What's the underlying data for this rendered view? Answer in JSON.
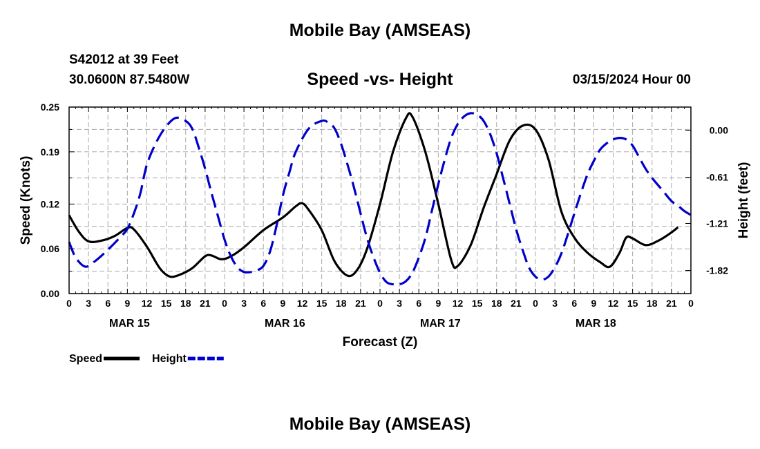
{
  "header": {
    "title": "Mobile Bay (AMSEAS)",
    "station": "S42012 at 39 Feet",
    "coords": "30.0600N  87.5480W",
    "chart_title": "Speed -vs- Height",
    "date": "03/15/2024 Hour 00"
  },
  "footer": {
    "title": "Mobile Bay (AMSEAS)"
  },
  "colors": {
    "speed": "#000000",
    "height": "#0000cc",
    "grid": "#a8a8a8"
  },
  "chart_data": {
    "type": "line",
    "title": "Speed -vs- Height",
    "xlabel": "Forecast (Z)",
    "ylabel": "Speed (Knots)",
    "y2label": "Height (feet)",
    "xlim": [
      0,
      96
    ],
    "ylim": [
      0,
      0.25
    ],
    "y2lim": [
      -2.12,
      0.3
    ],
    "x_tick_labels": [
      "0",
      "3",
      "6",
      "9",
      "12",
      "15",
      "18",
      "21",
      "0",
      "3",
      "6",
      "9",
      "12",
      "15",
      "18",
      "21",
      "0",
      "3",
      "6",
      "9",
      "12",
      "15",
      "18",
      "21",
      "0",
      "3",
      "6",
      "9",
      "12",
      "15",
      "18",
      "21",
      "0"
    ],
    "day_labels": [
      {
        "label": "MAR 15",
        "hour": 9
      },
      {
        "label": "MAR 16",
        "hour": 33
      },
      {
        "label": "MAR 17",
        "hour": 57
      },
      {
        "label": "MAR 18",
        "hour": 81
      }
    ],
    "y_ticks": [
      {
        "value": 0.0,
        "label": "0.00"
      },
      {
        "value": 0.06,
        "label": "0.06"
      },
      {
        "value": 0.12,
        "label": "0.12"
      },
      {
        "value": 0.19,
        "label": "0.19"
      },
      {
        "value": 0.25,
        "label": "0.25"
      }
    ],
    "y2_ticks": [
      {
        "value": 0.0,
        "label": "0.00"
      },
      {
        "value": -0.61,
        "label": "-0.61"
      },
      {
        "value": -1.21,
        "label": "-1.21"
      },
      {
        "value": -1.82,
        "label": "-1.82"
      }
    ],
    "series": [
      {
        "name": "Speed",
        "axis": "left",
        "style": "solid",
        "points": [
          [
            0,
            0.105
          ],
          [
            1.5,
            0.083
          ],
          [
            3,
            0.07
          ],
          [
            5,
            0.071
          ],
          [
            7,
            0.077
          ],
          [
            9,
            0.088
          ],
          [
            10,
            0.086
          ],
          [
            12,
            0.063
          ],
          [
            14,
            0.034
          ],
          [
            15.5,
            0.023
          ],
          [
            17,
            0.025
          ],
          [
            19,
            0.034
          ],
          [
            21,
            0.05
          ],
          [
            22,
            0.051
          ],
          [
            23.5,
            0.046
          ],
          [
            25,
            0.05
          ],
          [
            27,
            0.062
          ],
          [
            30,
            0.085
          ],
          [
            33,
            0.102
          ],
          [
            35,
            0.117
          ],
          [
            36,
            0.121
          ],
          [
            37,
            0.112
          ],
          [
            39,
            0.085
          ],
          [
            41,
            0.043
          ],
          [
            43,
            0.024
          ],
          [
            44.5,
            0.032
          ],
          [
            46,
            0.06
          ],
          [
            48,
            0.12
          ],
          [
            50,
            0.19
          ],
          [
            52,
            0.235
          ],
          [
            53,
            0.237
          ],
          [
            55,
            0.19
          ],
          [
            57,
            0.12
          ],
          [
            59,
            0.045
          ],
          [
            60,
            0.037
          ],
          [
            62,
            0.065
          ],
          [
            64,
            0.115
          ],
          [
            66,
            0.16
          ],
          [
            68,
            0.205
          ],
          [
            70,
            0.225
          ],
          [
            72,
            0.22
          ],
          [
            74,
            0.18
          ],
          [
            76,
            0.11
          ],
          [
            78,
            0.075
          ],
          [
            80,
            0.055
          ],
          [
            82,
            0.042
          ],
          [
            83.5,
            0.036
          ],
          [
            85,
            0.055
          ],
          [
            86,
            0.075
          ],
          [
            87,
            0.074
          ],
          [
            89,
            0.065
          ],
          [
            91,
            0.071
          ],
          [
            93,
            0.082
          ],
          [
            94,
            0.089
          ]
        ]
      },
      {
        "name": "Height",
        "axis": "right",
        "style": "dashed",
        "points": [
          [
            0,
            -1.45
          ],
          [
            1,
            -1.65
          ],
          [
            2.5,
            -1.77
          ],
          [
            4,
            -1.7
          ],
          [
            6,
            -1.55
          ],
          [
            8,
            -1.38
          ],
          [
            9,
            -1.28
          ],
          [
            10,
            -1.08
          ],
          [
            11,
            -0.82
          ],
          [
            12,
            -0.45
          ],
          [
            13.5,
            -0.15
          ],
          [
            15,
            0.05
          ],
          [
            16.5,
            0.16
          ],
          [
            18,
            0.12
          ],
          [
            19,
            0.02
          ],
          [
            20,
            -0.22
          ],
          [
            21,
            -0.5
          ],
          [
            22,
            -0.82
          ],
          [
            23,
            -1.12
          ],
          [
            24,
            -1.42
          ],
          [
            25,
            -1.64
          ],
          [
            26,
            -1.78
          ],
          [
            27,
            -1.84
          ],
          [
            28,
            -1.84
          ],
          [
            29,
            -1.82
          ],
          [
            30,
            -1.76
          ],
          [
            31,
            -1.58
          ],
          [
            32,
            -1.25
          ],
          [
            33,
            -0.85
          ],
          [
            34,
            -0.55
          ],
          [
            35,
            -0.28
          ],
          [
            37,
            0.02
          ],
          [
            39,
            0.12
          ],
          [
            40,
            0.1
          ],
          [
            41,
            0.02
          ],
          [
            42,
            -0.18
          ],
          [
            43,
            -0.45
          ],
          [
            44,
            -0.75
          ],
          [
            45,
            -1.08
          ],
          [
            46,
            -1.4
          ],
          [
            47,
            -1.65
          ],
          [
            48,
            -1.85
          ],
          [
            49,
            -1.97
          ],
          [
            50,
            -2.0
          ],
          [
            51,
            -2.0
          ],
          [
            52,
            -1.96
          ],
          [
            53,
            -1.85
          ],
          [
            54,
            -1.65
          ],
          [
            55,
            -1.4
          ],
          [
            56,
            -1.05
          ],
          [
            57,
            -0.7
          ],
          [
            58,
            -0.38
          ],
          [
            59,
            -0.1
          ],
          [
            60,
            0.08
          ],
          [
            61,
            0.18
          ],
          [
            62,
            0.22
          ],
          [
            63,
            0.2
          ],
          [
            64,
            0.12
          ],
          [
            65,
            -0.05
          ],
          [
            66,
            -0.3
          ],
          [
            67,
            -0.62
          ],
          [
            68,
            -0.95
          ],
          [
            69,
            -1.28
          ],
          [
            70,
            -1.55
          ],
          [
            71,
            -1.78
          ],
          [
            72,
            -1.9
          ],
          [
            73,
            -1.94
          ],
          [
            74,
            -1.9
          ],
          [
            75,
            -1.78
          ],
          [
            76,
            -1.6
          ],
          [
            77,
            -1.35
          ],
          [
            78,
            -1.08
          ],
          [
            79,
            -0.82
          ],
          [
            80,
            -0.58
          ],
          [
            81,
            -0.4
          ],
          [
            82,
            -0.25
          ],
          [
            83,
            -0.17
          ],
          [
            84,
            -0.12
          ],
          [
            85,
            -0.1
          ],
          [
            86,
            -0.12
          ],
          [
            87,
            -0.2
          ],
          [
            88,
            -0.35
          ],
          [
            89,
            -0.5
          ],
          [
            90,
            -0.62
          ],
          [
            91,
            -0.72
          ],
          [
            92,
            -0.82
          ],
          [
            93,
            -0.92
          ],
          [
            94,
            -0.98
          ],
          [
            95,
            -1.05
          ],
          [
            96,
            -1.1
          ]
        ]
      }
    ],
    "legend": [
      {
        "label": "Speed",
        "series": "Speed"
      },
      {
        "label": "Height",
        "series": "Height"
      }
    ],
    "legend_position": "bottom-left",
    "grid": true
  }
}
